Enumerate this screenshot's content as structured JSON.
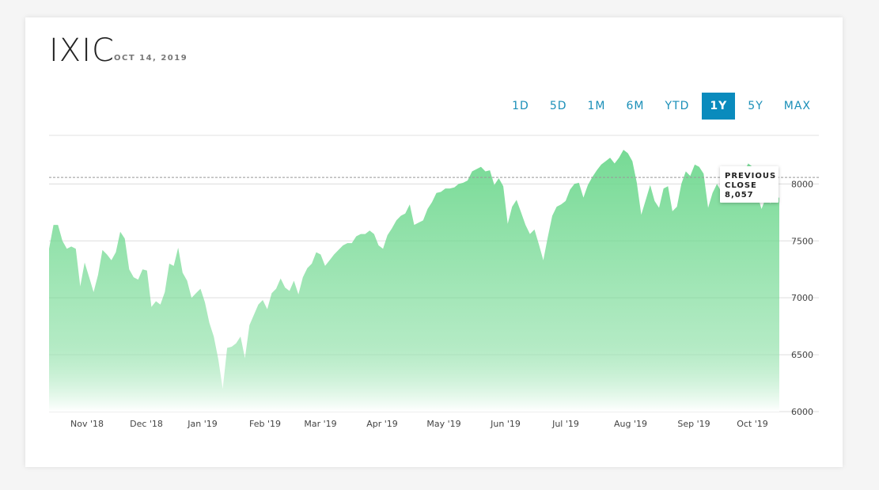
{
  "header": {
    "ticker": "IXIC",
    "date": "OCT 14, 2019"
  },
  "ranges": [
    {
      "label": "1D",
      "active": false
    },
    {
      "label": "5D",
      "active": false
    },
    {
      "label": "1M",
      "active": false
    },
    {
      "label": "6M",
      "active": false
    },
    {
      "label": "YTD",
      "active": false
    },
    {
      "label": "1Y",
      "active": true
    },
    {
      "label": "5Y",
      "active": false
    },
    {
      "label": "MAX",
      "active": false
    }
  ],
  "colors": {
    "fill_top": "#6fd88f",
    "fill_bottom": "#ffffff",
    "accent": "#0a8bbd",
    "gridline": "#dddddd",
    "prev_close_line": "#999999"
  },
  "chart_data": {
    "type": "area",
    "ylim": [
      6000,
      8350
    ],
    "yticks": [
      6000,
      6500,
      7000,
      7500,
      8000
    ],
    "xticks": [
      "Nov '18",
      "Dec '18",
      "Jan '19",
      "Feb '19",
      "Mar '19",
      "Apr '19",
      "May '19",
      "Jun '19",
      "Jul '19",
      "Aug '19",
      "Sep '19",
      "Oct '19"
    ],
    "grid": true,
    "previous_close": {
      "label_lines": [
        "PREVIOUS",
        "CLOSE",
        "8,057"
      ],
      "value": 8057
    },
    "points": [
      [
        0,
        7430
      ],
      [
        1,
        7640
      ],
      [
        2,
        7640
      ],
      [
        3,
        7500
      ],
      [
        4,
        7430
      ],
      [
        5,
        7450
      ],
      [
        6,
        7430
      ],
      [
        7,
        7100
      ],
      [
        8,
        7310
      ],
      [
        9,
        7180
      ],
      [
        10,
        7050
      ],
      [
        11,
        7200
      ],
      [
        12,
        7420
      ],
      [
        13,
        7380
      ],
      [
        14,
        7330
      ],
      [
        15,
        7400
      ],
      [
        16,
        7580
      ],
      [
        17,
        7520
      ],
      [
        18,
        7250
      ],
      [
        19,
        7180
      ],
      [
        20,
        7160
      ],
      [
        21,
        7250
      ],
      [
        22,
        7240
      ],
      [
        23,
        6920
      ],
      [
        24,
        6970
      ],
      [
        25,
        6940
      ],
      [
        26,
        7050
      ],
      [
        27,
        7300
      ],
      [
        28,
        7280
      ],
      [
        29,
        7440
      ],
      [
        30,
        7220
      ],
      [
        31,
        7150
      ],
      [
        32,
        7000
      ],
      [
        33,
        7040
      ],
      [
        34,
        7080
      ],
      [
        35,
        6960
      ],
      [
        36,
        6780
      ],
      [
        37,
        6660
      ],
      [
        38,
        6460
      ],
      [
        39,
        6200
      ],
      [
        40,
        6560
      ],
      [
        41,
        6570
      ],
      [
        42,
        6600
      ],
      [
        43,
        6660
      ],
      [
        44,
        6470
      ],
      [
        45,
        6760
      ],
      [
        46,
        6850
      ],
      [
        47,
        6940
      ],
      [
        48,
        6980
      ],
      [
        49,
        6900
      ],
      [
        50,
        7040
      ],
      [
        51,
        7080
      ],
      [
        52,
        7170
      ],
      [
        53,
        7090
      ],
      [
        54,
        7060
      ],
      [
        55,
        7150
      ],
      [
        56,
        7030
      ],
      [
        57,
        7180
      ],
      [
        58,
        7260
      ],
      [
        59,
        7300
      ],
      [
        60,
        7400
      ],
      [
        61,
        7380
      ],
      [
        62,
        7280
      ],
      [
        63,
        7330
      ],
      [
        64,
        7380
      ],
      [
        65,
        7420
      ],
      [
        66,
        7460
      ],
      [
        67,
        7480
      ],
      [
        68,
        7480
      ],
      [
        69,
        7540
      ],
      [
        70,
        7560
      ],
      [
        71,
        7560
      ],
      [
        72,
        7590
      ],
      [
        73,
        7560
      ],
      [
        74,
        7460
      ],
      [
        75,
        7430
      ],
      [
        76,
        7550
      ],
      [
        77,
        7610
      ],
      [
        78,
        7680
      ],
      [
        79,
        7720
      ],
      [
        80,
        7740
      ],
      [
        81,
        7820
      ],
      [
        82,
        7640
      ],
      [
        83,
        7660
      ],
      [
        84,
        7680
      ],
      [
        85,
        7780
      ],
      [
        86,
        7840
      ],
      [
        87,
        7920
      ],
      [
        88,
        7930
      ],
      [
        89,
        7960
      ],
      [
        90,
        7960
      ],
      [
        91,
        7970
      ],
      [
        92,
        8000
      ],
      [
        93,
        8010
      ],
      [
        94,
        8030
      ],
      [
        95,
        8110
      ],
      [
        96,
        8130
      ],
      [
        97,
        8150
      ],
      [
        98,
        8110
      ],
      [
        99,
        8120
      ],
      [
        100,
        7990
      ],
      [
        101,
        8050
      ],
      [
        102,
        7980
      ],
      [
        103,
        7650
      ],
      [
        104,
        7800
      ],
      [
        105,
        7860
      ],
      [
        106,
        7750
      ],
      [
        107,
        7640
      ],
      [
        108,
        7560
      ],
      [
        109,
        7600
      ],
      [
        110,
        7470
      ],
      [
        111,
        7330
      ],
      [
        112,
        7530
      ],
      [
        113,
        7720
      ],
      [
        114,
        7800
      ],
      [
        115,
        7820
      ],
      [
        116,
        7850
      ],
      [
        117,
        7950
      ],
      [
        118,
        8000
      ],
      [
        119,
        8010
      ],
      [
        120,
        7880
      ],
      [
        121,
        7990
      ],
      [
        122,
        8060
      ],
      [
        123,
        8120
      ],
      [
        124,
        8170
      ],
      [
        125,
        8200
      ],
      [
        126,
        8230
      ],
      [
        127,
        8180
      ],
      [
        128,
        8230
      ],
      [
        129,
        8300
      ],
      [
        130,
        8270
      ],
      [
        131,
        8200
      ],
      [
        132,
        8010
      ],
      [
        133,
        7730
      ],
      [
        134,
        7860
      ],
      [
        135,
        7990
      ],
      [
        136,
        7850
      ],
      [
        137,
        7790
      ],
      [
        138,
        7960
      ],
      [
        139,
        7980
      ],
      [
        140,
        7760
      ],
      [
        141,
        7800
      ],
      [
        142,
        8000
      ],
      [
        143,
        8110
      ],
      [
        144,
        8070
      ],
      [
        145,
        8170
      ],
      [
        146,
        8150
      ],
      [
        147,
        8090
      ],
      [
        148,
        7790
      ],
      [
        149,
        7920
      ],
      [
        150,
        8000
      ],
      [
        151,
        7930
      ],
      [
        152,
        8000
      ],
      [
        153,
        8050
      ],
      [
        154,
        7870
      ],
      [
        155,
        7900
      ],
      [
        156,
        8090
      ],
      [
        157,
        8180
      ],
      [
        158,
        8150
      ],
      [
        159,
        7910
      ],
      [
        160,
        7780
      ],
      [
        161,
        7880
      ],
      [
        162,
        7830
      ],
      [
        163,
        7880
      ],
      [
        164,
        7880
      ]
    ]
  }
}
